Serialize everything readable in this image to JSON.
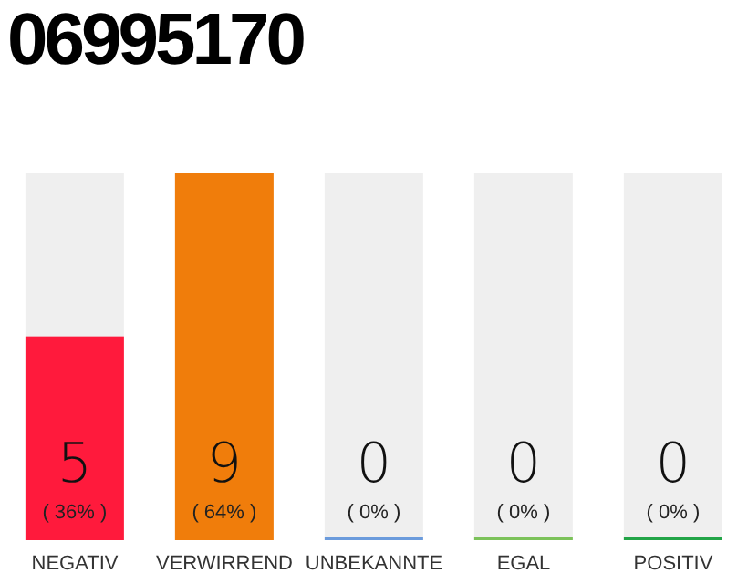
{
  "chart_data": {
    "type": "bar",
    "title": "06995170",
    "categories": [
      "NEGATIV",
      "VERWIRREND",
      "UNBEKANNTE",
      "EGAL",
      "POSITIV"
    ],
    "values": [
      5,
      9,
      0,
      0,
      0
    ],
    "colors": [
      "#ff1a3c",
      "#f07d0b",
      "#6b9bdc",
      "#7cc25a",
      "#22a447"
    ],
    "data_labels": true,
    "annotations": [
      "( 36% )",
      "( 64% )",
      "( 0% )",
      "( 0% )",
      "( 0% )"
    ],
    "tick_labels": "x"
  }
}
